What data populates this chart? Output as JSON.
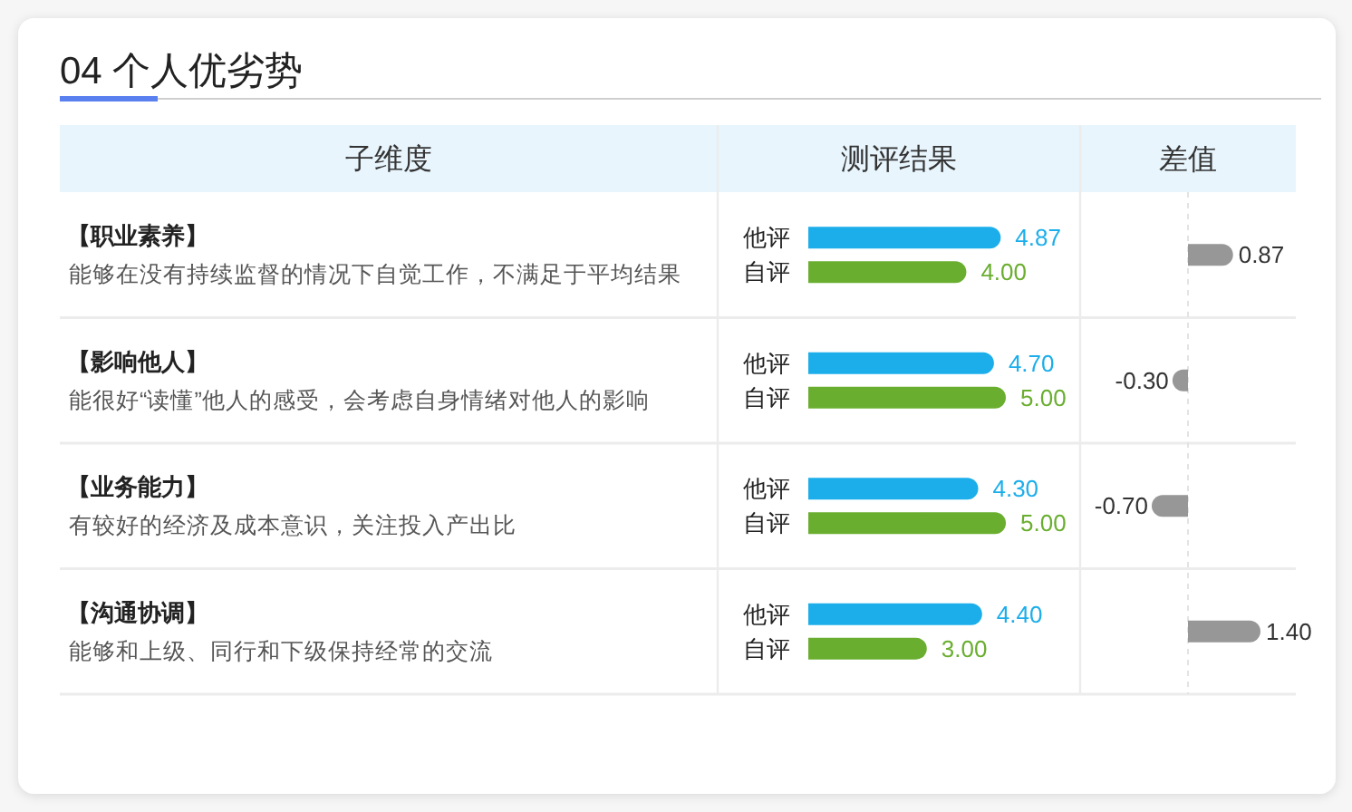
{
  "chart_data": [
    {
      "type": "bar",
      "orientation": "horizontal",
      "title": "04 个人优劣势",
      "ylabel": "子维度",
      "xlabel": "测评结果",
      "categories": [
        "【职业素养】",
        "【影响他人】",
        "【业务能力】",
        "【沟通协调】"
      ],
      "annotations": [
        "能够在没有持续监督的情况下自觉工作，不满足于平均结果",
        "能很好“读懂”他人的感受，会考虑自身情绪对他人的影响",
        "有较好的经济及成本意识，关注投入产出比",
        "能够和上级、同行和下级保持经常的交流"
      ],
      "series": [
        {
          "name": "他评",
          "color": "#1caeea",
          "values": [
            4.87,
            4.7,
            4.3,
            4.4
          ],
          "value_labels": [
            "4.87",
            "4.70",
            "4.30",
            "4.40"
          ]
        },
        {
          "name": "自评",
          "color": "#6aae30",
          "values": [
            4.0,
            5.0,
            5.0,
            3.0
          ],
          "value_labels": [
            "4.00",
            "5.00",
            "5.00",
            "3.00"
          ]
        }
      ]
    },
    {
      "type": "bar",
      "orientation": "horizontal",
      "xlabel": "差值",
      "categories": [
        null,
        null,
        null,
        null
      ],
      "values": [
        0.87,
        -0.3,
        -0.7,
        1.4
      ],
      "value_labels": [
        "0.87",
        "-0.30",
        "-0.70",
        "1.40"
      ],
      "color": "#979797",
      "ref_lines": [
        {
          "axis": "x",
          "value": 0,
          "color": "#e3e3e3",
          "line_style": "dashed"
        }
      ]
    }
  ]
}
